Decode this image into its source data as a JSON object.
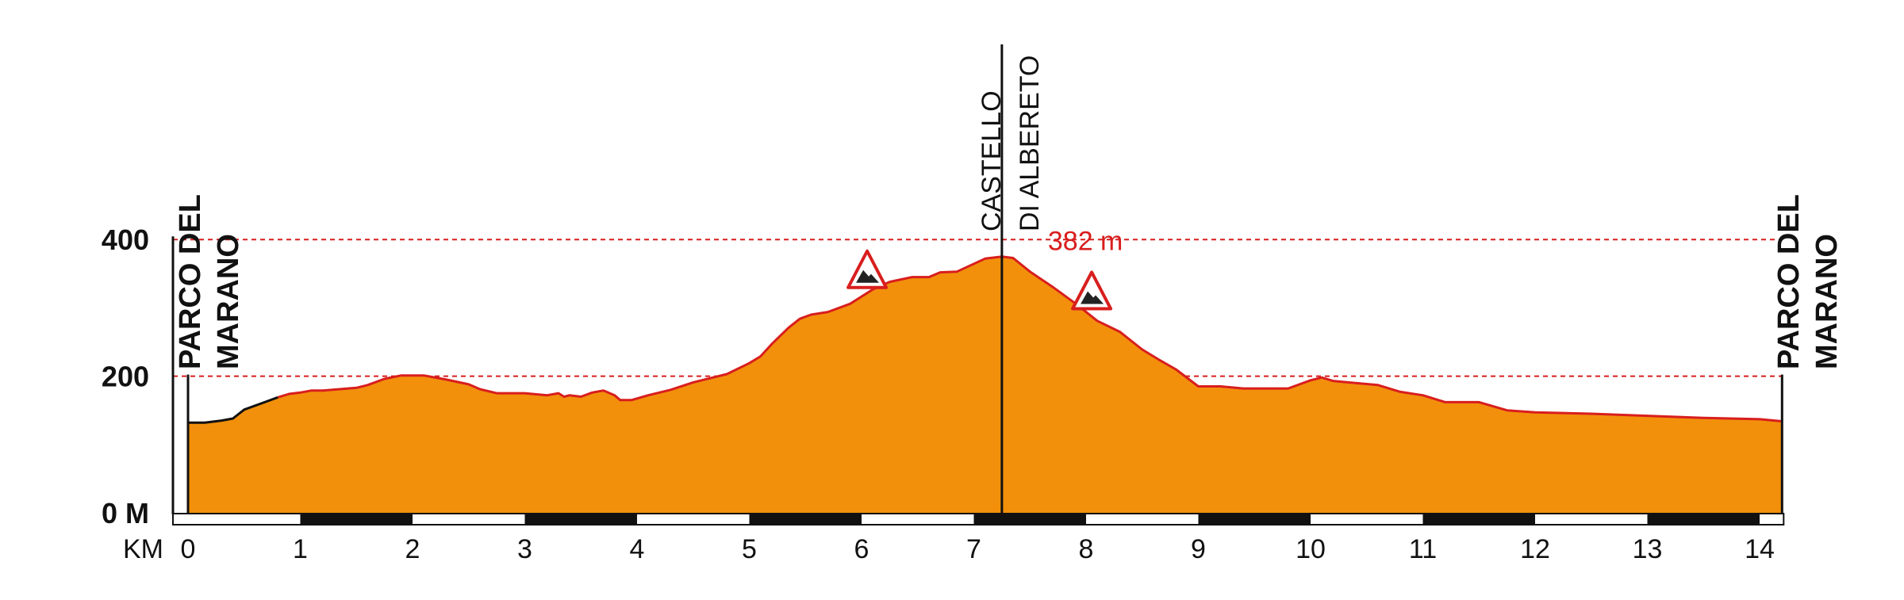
{
  "chart_data": {
    "type": "area",
    "title": "",
    "xlabel": "KM",
    "ylabel": "",
    "xlim": [
      0,
      14.2
    ],
    "ylim": [
      0,
      400
    ],
    "x_ticks": [
      0,
      1,
      2,
      3,
      4,
      5,
      6,
      7,
      8,
      9,
      10,
      11,
      12,
      13,
      14
    ],
    "y_ticks": [
      {
        "value": 0,
        "label": "0 M"
      },
      {
        "value": 200,
        "label": "200"
      },
      {
        "value": 400,
        "label": "400"
      }
    ],
    "reference_lines": [
      200,
      400
    ],
    "colors": {
      "fill": "#f2900b",
      "outline": "#d81e1e",
      "initial_outline": "#111111",
      "reference": "#d81e1e",
      "axis": "#111111"
    },
    "series": [
      {
        "x": [
          0,
          0.15,
          0.3,
          0.4,
          0.5,
          0.7,
          0.8,
          0.9,
          1.0,
          1.1,
          1.2,
          1.5,
          1.6,
          1.75,
          1.9,
          2.1,
          2.3,
          2.5,
          2.6,
          2.75,
          3.0,
          3.2,
          3.3,
          3.35,
          3.4,
          3.5,
          3.6,
          3.7,
          3.8,
          3.85,
          3.95,
          4.1,
          4.3,
          4.5,
          4.6,
          4.8,
          5.0,
          5.1,
          5.2,
          5.35,
          5.45,
          5.55,
          5.7,
          5.9,
          6.1,
          6.25,
          6.45,
          6.6,
          6.7,
          6.85,
          7.1,
          7.25,
          7.35,
          7.5,
          7.7,
          7.9,
          8.0,
          8.1,
          8.3,
          8.5,
          8.65,
          8.8,
          9.0,
          9.2,
          9.4,
          9.6,
          9.8,
          10.0,
          10.1,
          10.2,
          10.4,
          10.6,
          10.8,
          11.0,
          11.2,
          11.5,
          11.75,
          12.0,
          12.5,
          13.0,
          13.5,
          14.0,
          14.2
        ],
        "y": [
          132,
          132,
          135,
          138,
          151,
          163,
          169,
          174,
          176,
          179,
          179,
          183,
          187,
          196,
          201,
          201,
          195,
          188,
          181,
          175,
          175,
          172,
          175,
          170,
          172,
          170,
          176,
          179,
          172,
          165,
          165,
          172,
          180,
          191,
          195,
          203,
          219,
          229,
          247,
          271,
          284,
          290,
          294,
          306,
          327,
          338,
          345,
          345,
          352,
          353,
          372,
          375,
          373,
          353,
          331,
          307,
          294,
          281,
          265,
          239,
          224,
          210,
          185,
          185,
          182,
          182,
          182,
          194,
          198,
          193,
          190,
          187,
          177,
          172,
          162,
          162,
          150,
          147,
          145,
          142,
          139,
          137,
          134
        ]
      }
    ],
    "initial_segment_end_km": 0.8,
    "markers": [
      {
        "type": "climb",
        "km": 6.05,
        "elev": 346
      },
      {
        "type": "climb",
        "km": 8.05,
        "elev": 315
      }
    ],
    "peak": {
      "km": 7.25,
      "elev": 382,
      "label": "382 m"
    },
    "vertical_labels": [
      {
        "km": 0,
        "lines": [
          "PARCO DEL",
          "MARANO"
        ]
      },
      {
        "km": 7.25,
        "lines": [
          "CASTELLO",
          "DI ALBERETO"
        ]
      },
      {
        "km": 14.2,
        "lines": [
          "PARCO DEL",
          "MARANO"
        ]
      }
    ]
  }
}
